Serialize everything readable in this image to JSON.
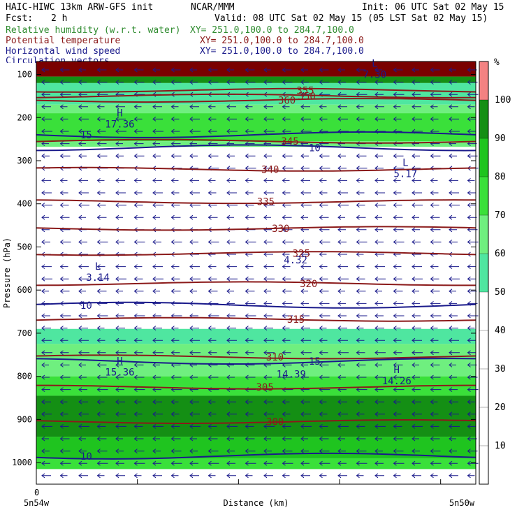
{
  "header": {
    "model": "HAIC-HIWC 13km ARW-GFS init",
    "org": "NCAR/MMM",
    "init": "Init: 06 UTC Sat 02 May 15",
    "fcst_label": "Fcst:",
    "fcst_value": "2 h",
    "valid": "Valid: 08 UTC Sat 02 May 15 (05 LST Sat 02 May 15)"
  },
  "fields": [
    {
      "name": "Relative humidity (w.r.t. water)",
      "xy": "XY= 251.0,100.0 to 284.7,100.0",
      "color": "#2e8b2e"
    },
    {
      "name": "Potential temperature",
      "xy": "XY= 251.0,100.0 to 284.7,100.0",
      "color": "#8b1a1a"
    },
    {
      "name": "Horizontal wind speed",
      "xy": "XY= 251.0,100.0 to 284.7,100.0",
      "color": "#1a1a8b"
    },
    {
      "name": "Circulation vectors",
      "xy": "XY= 251.0,100.0 to 284.7,100.0",
      "color": "#1a1a8b"
    }
  ],
  "chart_data": {
    "type": "heatmap",
    "ylabel": "Pressure (hPa)",
    "xlabel": "Distance (km)",
    "x_start_label": "5n54w",
    "x_end_label": "5n50w",
    "x_zero_label": "0",
    "y_ticks": [
      100,
      200,
      300,
      400,
      500,
      600,
      700,
      800,
      900,
      1000
    ],
    "ylim": [
      1050,
      70
    ],
    "colorbar": {
      "unit": "%",
      "ticks": [
        10,
        20,
        30,
        40,
        50,
        60,
        70,
        80,
        90,
        100
      ],
      "levels": [
        {
          "from": 0,
          "to": 50,
          "color": "#ffffff"
        },
        {
          "from": 50,
          "to": 60,
          "color": "#4fe6a0"
        },
        {
          "from": 60,
          "to": 70,
          "color": "#6fef7f"
        },
        {
          "from": 70,
          "to": 80,
          "color": "#3ae03a"
        },
        {
          "from": 80,
          "to": 90,
          "color": "#1fc41f"
        },
        {
          "from": 90,
          "to": 100,
          "color": "#148f14"
        },
        {
          "from": 100,
          "to": 110,
          "color": "#f38282"
        }
      ]
    },
    "rh_layers": [
      {
        "p_top": 70,
        "p_bottom": 105,
        "color": "#7a0000"
      },
      {
        "p_top": 105,
        "p_bottom": 120,
        "color": "#148f14"
      },
      {
        "p_top": 120,
        "p_bottom": 170,
        "color": "#4fe6a0"
      },
      {
        "p_top": 170,
        "p_bottom": 190,
        "color": "#6fef7f"
      },
      {
        "p_top": 190,
        "p_bottom": 255,
        "color": "#3ae03a"
      },
      {
        "p_top": 255,
        "p_bottom": 268,
        "color": "#6fef7f"
      },
      {
        "p_top": 690,
        "p_bottom": 725,
        "color": "#4fe6a0"
      },
      {
        "p_top": 725,
        "p_bottom": 800,
        "color": "#6fef7f"
      },
      {
        "p_top": 800,
        "p_bottom": 845,
        "color": "#3ae03a"
      },
      {
        "p_top": 845,
        "p_bottom": 940,
        "color": "#148f14"
      },
      {
        "p_top": 940,
        "p_bottom": 990,
        "color": "#1fc41f"
      },
      {
        "p_top": 990,
        "p_bottom": 1015,
        "color": "#3ae03a"
      }
    ],
    "theta_contours": [
      {
        "label": "360",
        "p": 160
      },
      {
        "label": "355",
        "p": 137
      },
      {
        "label": "350",
        "p": 150
      },
      {
        "label": "345",
        "p": 255
      },
      {
        "label": "340",
        "p": 320
      },
      {
        "label": "335",
        "p": 395
      },
      {
        "label": "330",
        "p": 457
      },
      {
        "label": "325",
        "p": 515
      },
      {
        "label": "320",
        "p": 585
      },
      {
        "label": "315",
        "p": 668
      },
      {
        "label": "310",
        "p": 755
      },
      {
        "label": "305",
        "p": 825
      },
      {
        "label": "300",
        "p": 905
      }
    ],
    "wind_contours": [
      {
        "label": "15",
        "p": 240
      },
      {
        "label": "10",
        "p": 270
      },
      {
        "label": "10",
        "p": 635
      },
      {
        "label": "15",
        "p": 765
      },
      {
        "label": "10",
        "p": 985
      }
    ],
    "extrema": [
      {
        "type": "H",
        "value": "17.36",
        "x_frac": 0.19,
        "p": 220
      },
      {
        "type": "L",
        "value": "7.30",
        "x_frac": 0.77,
        "p": 105
      },
      {
        "type": "L",
        "value": "5.17",
        "x_frac": 0.84,
        "p": 335
      },
      {
        "type": "L",
        "value": "3.14",
        "x_frac": 0.14,
        "p": 575
      },
      {
        "type": "",
        "value": "4.32",
        "x_frac": 0.59,
        "p": 535
      },
      {
        "type": "H",
        "value": "15.36",
        "x_frac": 0.19,
        "p": 795
      },
      {
        "type": "",
        "value": "14.39",
        "x_frac": 0.58,
        "p": 800
      },
      {
        "type": "H",
        "value": "14.26",
        "x_frac": 0.82,
        "p": 815
      }
    ]
  }
}
